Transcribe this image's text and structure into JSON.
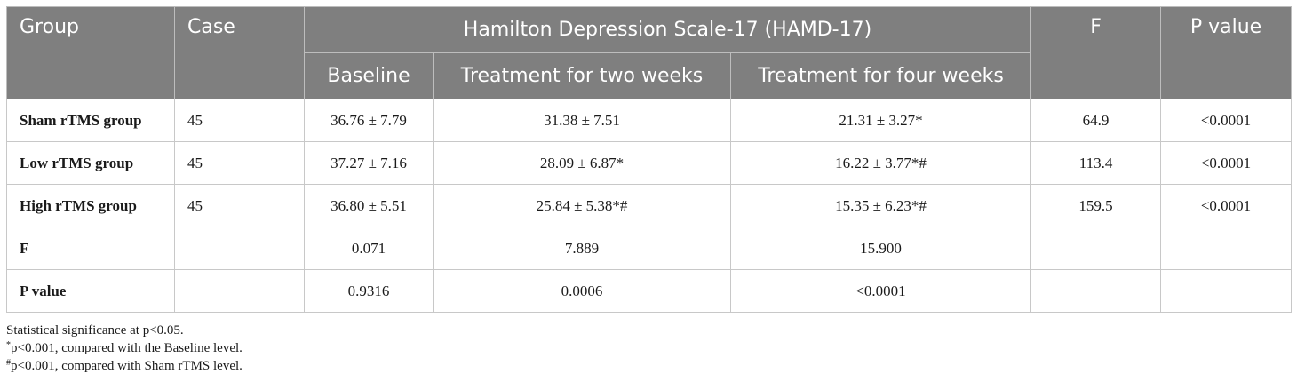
{
  "table": {
    "headers": {
      "group": "Group",
      "case": "Case",
      "hamd": "Hamilton Depression Scale-17 (HAMD-17)",
      "baseline": "Baseline",
      "two_weeks": "Treatment for two weeks",
      "four_weeks": "Treatment for four weeks",
      "f": "F",
      "p_value": "P value"
    },
    "rows": [
      {
        "group": "Sham rTMS group",
        "case": "45",
        "baseline": "36.76 ± 7.79",
        "two_weeks": "31.38 ± 7.51",
        "four_weeks": "21.31 ± 3.27*",
        "f": "64.9",
        "p": "<0.0001"
      },
      {
        "group": "Low rTMS group",
        "case": "45",
        "baseline": "37.27 ± 7.16",
        "two_weeks": "28.09 ± 6.87*",
        "four_weeks": "16.22 ± 3.77*#",
        "f": "113.4",
        "p": "<0.0001"
      },
      {
        "group": "High rTMS group",
        "case": "45",
        "baseline": "36.80 ± 5.51",
        "two_weeks": "25.84 ± 5.38*#",
        "four_weeks": "15.35 ± 6.23*#",
        "f": "159.5",
        "p": "<0.0001"
      },
      {
        "group": "F",
        "case": "",
        "baseline": "0.071",
        "two_weeks": "7.889",
        "four_weeks": "15.900",
        "f": "",
        "p": ""
      },
      {
        "group": "P value",
        "case": "",
        "baseline": "0.9316",
        "two_weeks": "0.0006",
        "four_weeks": "<0.0001",
        "f": "",
        "p": ""
      }
    ]
  },
  "notes": {
    "line1": "Statistical significance at p<0.05.",
    "line2_mark": "*",
    "line2": "p<0.001, compared with the Baseline level.",
    "line3_mark": "#",
    "line3": "p<0.001, compared with Sham rTMS level."
  }
}
